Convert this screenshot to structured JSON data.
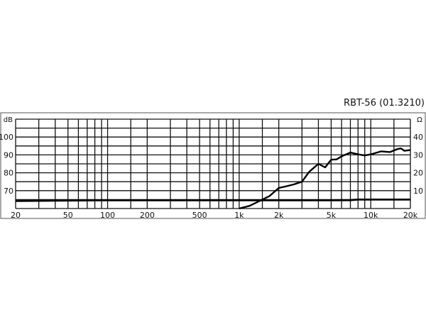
{
  "chart_data": {
    "type": "line",
    "title": "RBT-56 (01.3210)",
    "x_scale": "log",
    "xlim": [
      20,
      20000
    ],
    "x_ticks": [
      20,
      50,
      100,
      200,
      500,
      1000,
      2000,
      5000,
      10000,
      20000
    ],
    "x_tick_labels": [
      "20",
      "50",
      "100",
      "200",
      "500",
      "1k",
      "2k",
      "5k",
      "10k",
      "20k"
    ],
    "x_gridlines": [
      20,
      30,
      40,
      50,
      60,
      70,
      80,
      90,
      100,
      150,
      200,
      300,
      400,
      500,
      600,
      700,
      800,
      900,
      1000,
      1500,
      2000,
      3000,
      4000,
      5000,
      6000,
      7000,
      8000,
      9000,
      10000,
      15000,
      20000
    ],
    "left_axis": {
      "unit_label": "dB",
      "ylim": [
        60,
        110
      ],
      "ticks": [
        70,
        80,
        90,
        100
      ],
      "tick_labels": [
        "70",
        "80",
        "90",
        "100"
      ]
    },
    "right_axis": {
      "unit_label": "Ω",
      "ylim": [
        0,
        50
      ],
      "ticks": [
        10,
        20,
        30,
        40
      ],
      "tick_labels": [
        "10",
        "20",
        "30",
        "40"
      ]
    },
    "grid": true,
    "grid_step_db": 5,
    "series": [
      {
        "axis": "left",
        "x": [
          1000,
          1200,
          1500,
          1700,
          2000,
          2300,
          2600,
          3000,
          3400,
          4000,
          4500,
          5000,
          5500,
          6000,
          7000,
          8000,
          9000,
          10000,
          12000,
          14000,
          16000,
          17000,
          18000,
          20000
        ],
        "y": [
          60,
          61.5,
          65,
          67,
          71.5,
          72.5,
          73.5,
          75,
          80.5,
          85,
          83,
          87.3,
          87.5,
          89.2,
          91.3,
          90.3,
          89.7,
          90.3,
          92,
          91.6,
          93.3,
          93.6,
          92.3,
          92.7
        ]
      },
      {
        "axis": "right",
        "x": [
          20,
          50,
          100,
          200,
          500,
          1000,
          2000,
          5000,
          7000,
          8000,
          10000,
          20000
        ],
        "y": [
          4.2,
          4.5,
          4.6,
          4.6,
          4.6,
          4.6,
          4.6,
          4.6,
          4.7,
          5.0,
          5.0,
          5.0
        ]
      }
    ]
  }
}
